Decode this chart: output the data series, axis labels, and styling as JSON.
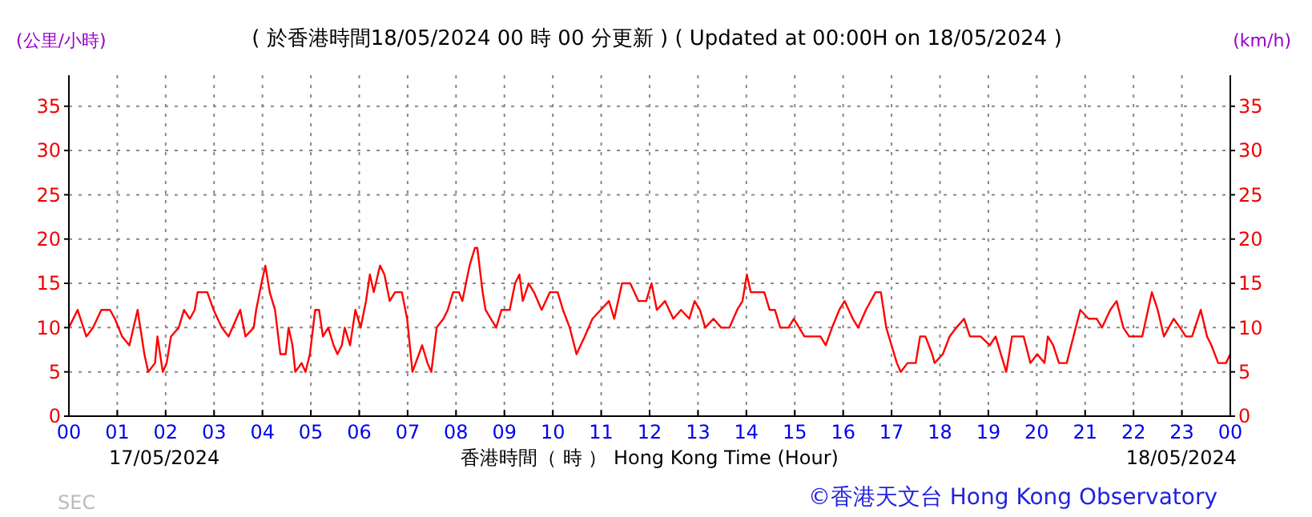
{
  "chart_data": {
    "type": "line",
    "title": "( 於香港時間18/05/2024 00 時 00 分更新 ) ( Updated at 00:00H on 18/05/2024 )",
    "xlabel": "香港時間（ 時 ） Hong Kong Time (Hour)",
    "ylabel": "(公里/小時)",
    "y2label": "(km/h)",
    "annotations": [
      "17/05/2024",
      "18/05/2024",
      "SEC",
      "©香港天文台 Hong Kong Observatory"
    ],
    "xlim": [
      0,
      24
    ],
    "xticks": [
      {
        "value": 0,
        "label": "00"
      },
      {
        "value": 1,
        "label": "01"
      },
      {
        "value": 2,
        "label": "02"
      },
      {
        "value": 3,
        "label": "03"
      },
      {
        "value": 4,
        "label": "04"
      },
      {
        "value": 5,
        "label": "05"
      },
      {
        "value": 6,
        "label": "06"
      },
      {
        "value": 7,
        "label": "07"
      },
      {
        "value": 8,
        "label": "08"
      },
      {
        "value": 9,
        "label": "09"
      },
      10,
      11,
      12,
      13,
      14,
      15,
      16,
      17,
      18,
      19,
      20,
      21,
      22,
      23,
      {
        "value": 24,
        "label": "00"
      }
    ],
    "ylim": [
      0,
      38.5
    ],
    "yticks": [
      0,
      5,
      10,
      15,
      20,
      25,
      30,
      35
    ],
    "y2lim": [
      0,
      38.5
    ],
    "y2ticks": [
      0,
      5,
      10,
      15,
      20,
      25,
      30,
      35
    ],
    "grid": true,
    "marker": "none",
    "line_style": "solid",
    "series": [
      {
        "color": "#ff0000",
        "x": [
          0,
          0.18,
          0.36,
          0.5,
          0.67,
          0.85,
          0.95,
          1.1,
          1.25,
          1.42,
          1.56,
          1.64,
          1.78,
          1.83,
          1.94,
          2.02,
          2.11,
          2.27,
          2.38,
          2.5,
          2.6,
          2.66,
          2.86,
          2.99,
          3.16,
          3.3,
          3.54,
          3.65,
          3.82,
          3.87,
          3.98,
          4.06,
          4.15,
          4.26,
          4.37,
          4.48,
          4.54,
          4.62,
          4.68,
          4.81,
          4.89,
          4.98,
          5.09,
          5.17,
          5.25,
          5.36,
          5.47,
          5.55,
          5.64,
          5.7,
          5.81,
          5.92,
          6.03,
          6.14,
          6.22,
          6.3,
          6.43,
          6.52,
          6.63,
          6.74,
          6.88,
          6.99,
          7.1,
          7.3,
          7.41,
          7.49,
          7.6,
          7.74,
          7.83,
          7.94,
          8.06,
          8.13,
          8.28,
          8.39,
          8.44,
          8.55,
          8.61,
          8.72,
          8.83,
          8.94,
          9.11,
          9.22,
          9.31,
          9.38,
          9.5,
          9.61,
          9.77,
          9.94,
          10.1,
          10.21,
          10.35,
          10.49,
          10.66,
          10.82,
          10.99,
          11.16,
          11.27,
          11.43,
          11.6,
          11.77,
          11.93,
          12.04,
          12.15,
          12.32,
          12.49,
          12.65,
          12.82,
          12.93,
          13.04,
          13.15,
          13.32,
          13.48,
          13.65,
          13.81,
          13.92,
          14.01,
          14.09,
          14.2,
          14.37,
          14.48,
          14.59,
          14.7,
          14.87,
          14.98,
          15.09,
          15.2,
          15.36,
          15.53,
          15.64,
          15.77,
          15.92,
          16.03,
          16.2,
          16.31,
          16.47,
          16.67,
          16.78,
          16.89,
          17.0,
          17.11,
          17.19,
          17.33,
          17.5,
          17.59,
          17.7,
          17.84,
          17.89,
          18.06,
          18.2,
          18.34,
          18.5,
          18.62,
          18.84,
          19.03,
          19.15,
          19.26,
          19.37,
          19.49,
          19.62,
          19.73,
          19.87,
          20.01,
          20.16,
          20.23,
          20.34,
          20.46,
          20.62,
          20.76,
          20.9,
          21.07,
          21.24,
          21.35,
          21.52,
          21.65,
          21.79,
          21.91,
          22.07,
          22.18,
          22.3,
          22.38,
          22.5,
          22.63,
          22.83,
          22.96,
          23.08,
          23.21,
          23.39,
          23.52,
          23.61,
          23.75,
          23.91,
          24.0
        ],
        "values": [
          10,
          12,
          9,
          10,
          12,
          12,
          11,
          9,
          8,
          12,
          7,
          5,
          6,
          9,
          5,
          6,
          9,
          10,
          12,
          11,
          12,
          14,
          14,
          12,
          10,
          9,
          12,
          9,
          10,
          12,
          15,
          17,
          14,
          12,
          7,
          7,
          10,
          8,
          5,
          6,
          5,
          7,
          12,
          12,
          9,
          10,
          8,
          7,
          8,
          10,
          8,
          12,
          10,
          13,
          16,
          14,
          17,
          16,
          13,
          14,
          14,
          11,
          5,
          8,
          6,
          5,
          10,
          11,
          12,
          14,
          14,
          13,
          17,
          19,
          19,
          14,
          12,
          11,
          10,
          12,
          12,
          15,
          16,
          13,
          15,
          14,
          12,
          14,
          14,
          12,
          10,
          7,
          9,
          11,
          12,
          13,
          11,
          15,
          15,
          13,
          13,
          15,
          12,
          13,
          11,
          12,
          11,
          13,
          12,
          10,
          11,
          10,
          10,
          12,
          13,
          16,
          14,
          14,
          14,
          12,
          12,
          10,
          10,
          11,
          10,
          9,
          9,
          9,
          8,
          10,
          12,
          13,
          11,
          10,
          12,
          14,
          14,
          10,
          8,
          6,
          5,
          6,
          6,
          9,
          9,
          7,
          6,
          7,
          9,
          10,
          11,
          9,
          9,
          8,
          9,
          7,
          5,
          9,
          9,
          9,
          6,
          7,
          6,
          9,
          8,
          6,
          6,
          9,
          12,
          11,
          11,
          10,
          12,
          13,
          10,
          9,
          9,
          9,
          12,
          14,
          12,
          9,
          11,
          10,
          9,
          9,
          12,
          9,
          8,
          6,
          6,
          7
        ]
      }
    ]
  }
}
